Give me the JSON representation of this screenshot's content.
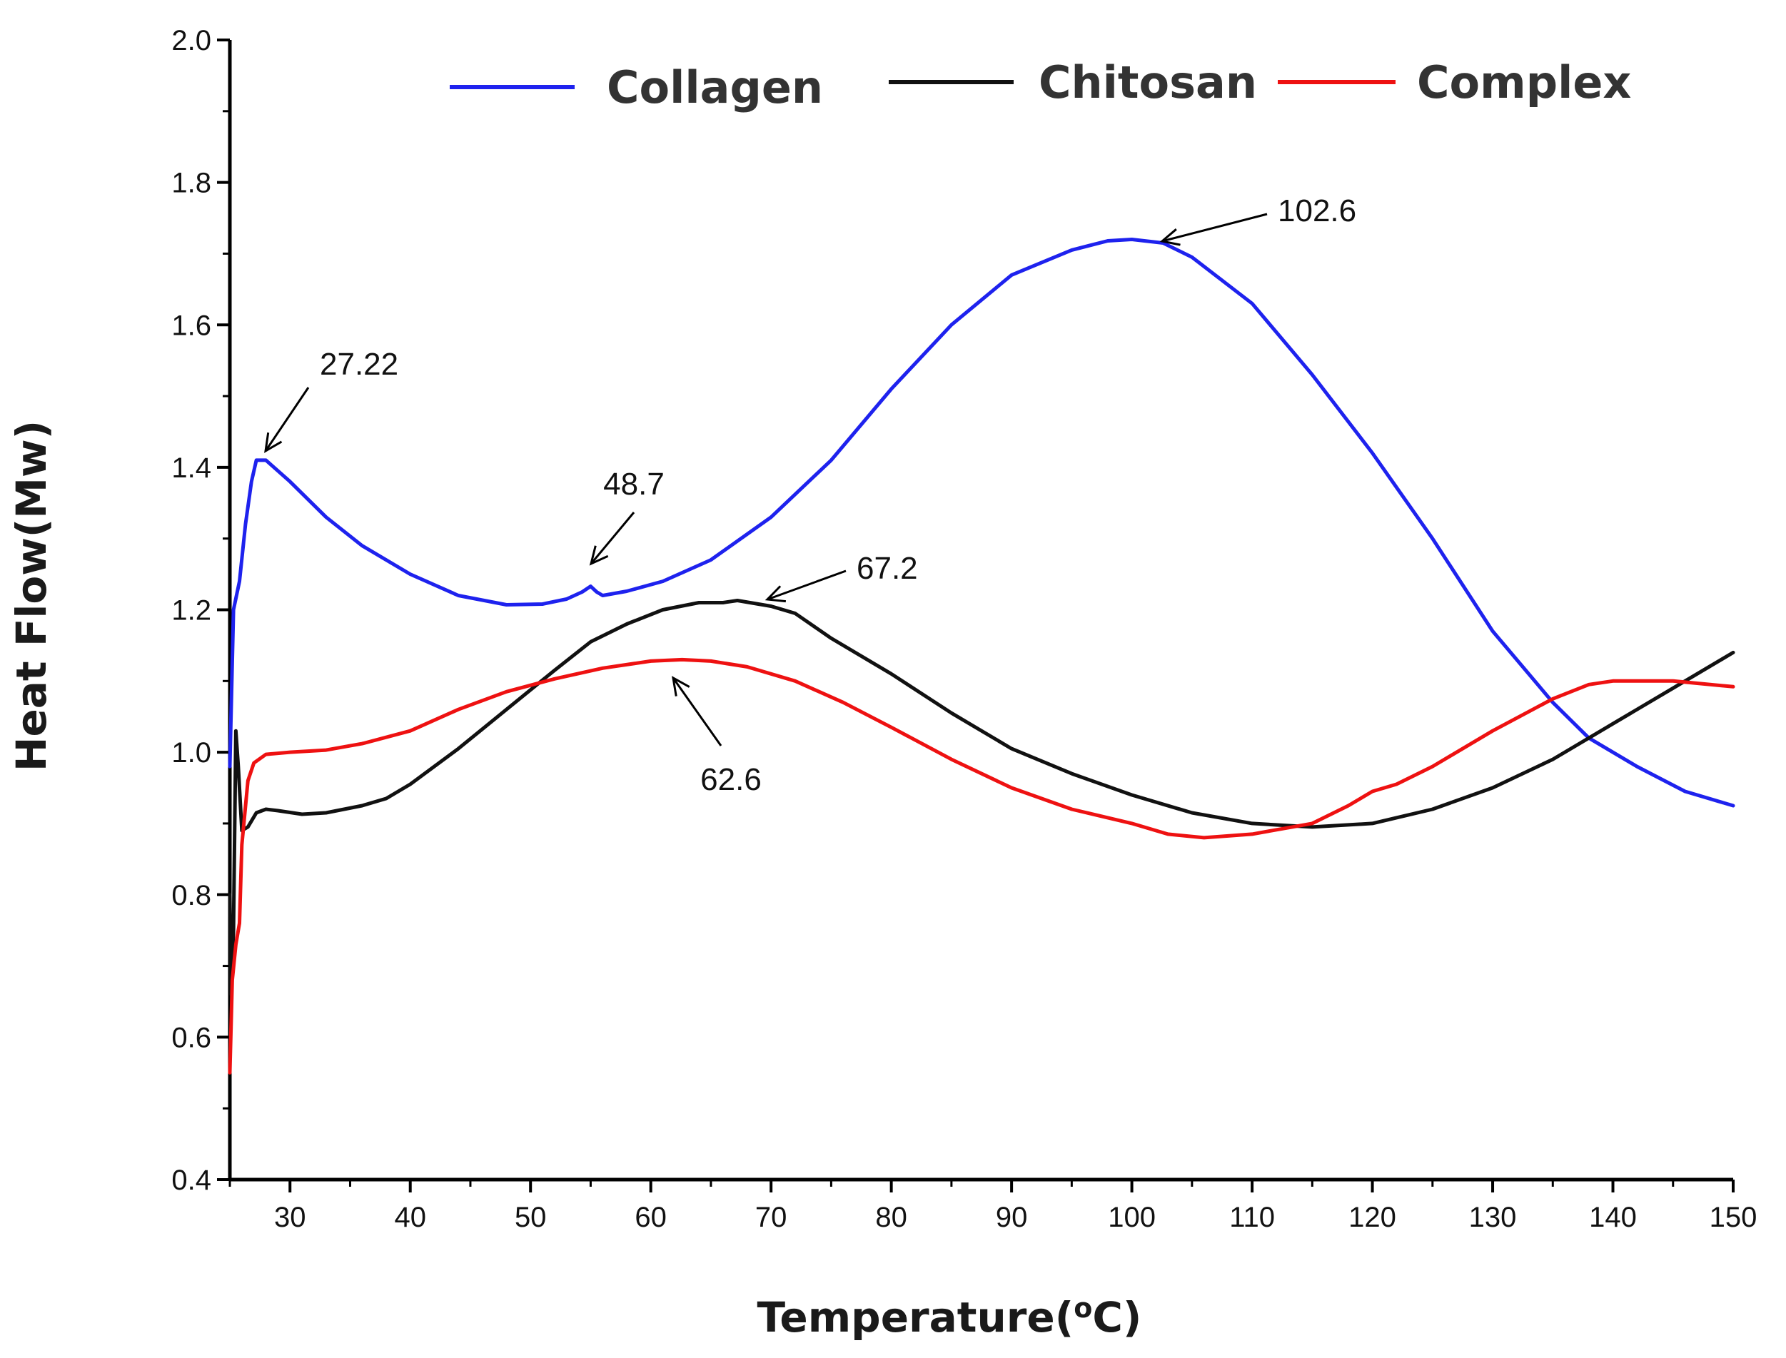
{
  "chart_data": {
    "type": "line",
    "title": "",
    "xlabel": "Temperature(",
    "xlabel_sup": "o",
    "xlabel_tail": "C)",
    "ylabel": "Heat Flow(Mw)",
    "xlim": [
      25,
      150
    ],
    "ylim": [
      0.4,
      2.0
    ],
    "x_ticks": [
      30,
      40,
      50,
      60,
      70,
      80,
      90,
      100,
      110,
      120,
      130,
      140,
      150
    ],
    "y_ticks": [
      0.4,
      0.6,
      0.8,
      1.0,
      1.2,
      1.4,
      1.6,
      1.8,
      2.0
    ],
    "legend_position": "top",
    "series": [
      {
        "name": "Collagen",
        "color": "#1e22ee",
        "points": [
          [
            25,
            0.98
          ],
          [
            25.3,
            1.2
          ],
          [
            25.8,
            1.24
          ],
          [
            26.3,
            1.32
          ],
          [
            26.8,
            1.38
          ],
          [
            27.2,
            1.41
          ],
          [
            28,
            1.41
          ],
          [
            30,
            1.38
          ],
          [
            33,
            1.33
          ],
          [
            36,
            1.29
          ],
          [
            40,
            1.25
          ],
          [
            44,
            1.22
          ],
          [
            48,
            1.207
          ],
          [
            51,
            1.208
          ],
          [
            53,
            1.215
          ],
          [
            54.3,
            1.225
          ],
          [
            55,
            1.233
          ],
          [
            55.5,
            1.225
          ],
          [
            56,
            1.22
          ],
          [
            58,
            1.226
          ],
          [
            61,
            1.24
          ],
          [
            65,
            1.27
          ],
          [
            70,
            1.33
          ],
          [
            75,
            1.41
          ],
          [
            80,
            1.51
          ],
          [
            85,
            1.6
          ],
          [
            90,
            1.67
          ],
          [
            95,
            1.705
          ],
          [
            98,
            1.718
          ],
          [
            100,
            1.72
          ],
          [
            102.6,
            1.715
          ],
          [
            105,
            1.695
          ],
          [
            110,
            1.63
          ],
          [
            115,
            1.53
          ],
          [
            120,
            1.42
          ],
          [
            125,
            1.3
          ],
          [
            130,
            1.17
          ],
          [
            135,
            1.07
          ],
          [
            138,
            1.02
          ],
          [
            142,
            0.98
          ],
          [
            146,
            0.945
          ],
          [
            150,
            0.925
          ]
        ]
      },
      {
        "name": "Chitosan",
        "color": "#111111",
        "points": [
          [
            25,
            0.8
          ],
          [
            25.1,
            0.66
          ],
          [
            25.3,
            0.75
          ],
          [
            25.5,
            1.03
          ],
          [
            25.7,
            0.98
          ],
          [
            26,
            0.89
          ],
          [
            26.5,
            0.895
          ],
          [
            27.2,
            0.915
          ],
          [
            28,
            0.92
          ],
          [
            29,
            0.918
          ],
          [
            31,
            0.913
          ],
          [
            33,
            0.915
          ],
          [
            36,
            0.925
          ],
          [
            38,
            0.935
          ],
          [
            40,
            0.955
          ],
          [
            44,
            1.005
          ],
          [
            48,
            1.06
          ],
          [
            52,
            1.115
          ],
          [
            55,
            1.155
          ],
          [
            58,
            1.18
          ],
          [
            61,
            1.2
          ],
          [
            64,
            1.21
          ],
          [
            66,
            1.21
          ],
          [
            67.2,
            1.213
          ],
          [
            70,
            1.205
          ],
          [
            72,
            1.195
          ],
          [
            75,
            1.16
          ],
          [
            80,
            1.11
          ],
          [
            85,
            1.055
          ],
          [
            90,
            1.005
          ],
          [
            95,
            0.97
          ],
          [
            100,
            0.94
          ],
          [
            105,
            0.915
          ],
          [
            110,
            0.9
          ],
          [
            115,
            0.895
          ],
          [
            120,
            0.9
          ],
          [
            125,
            0.92
          ],
          [
            130,
            0.95
          ],
          [
            135,
            0.99
          ],
          [
            140,
            1.04
          ],
          [
            145,
            1.09
          ],
          [
            150,
            1.14
          ]
        ]
      },
      {
        "name": "Complex",
        "color": "#ee1111",
        "points": [
          [
            25,
            0.55
          ],
          [
            25.2,
            0.68
          ],
          [
            25.5,
            0.73
          ],
          [
            25.8,
            0.76
          ],
          [
            26,
            0.87
          ],
          [
            26.5,
            0.96
          ],
          [
            27,
            0.985
          ],
          [
            28,
            0.997
          ],
          [
            30,
            1.0
          ],
          [
            33,
            1.003
          ],
          [
            36,
            1.012
          ],
          [
            40,
            1.03
          ],
          [
            44,
            1.06
          ],
          [
            48,
            1.085
          ],
          [
            52,
            1.103
          ],
          [
            56,
            1.118
          ],
          [
            60,
            1.128
          ],
          [
            62.6,
            1.13
          ],
          [
            65,
            1.128
          ],
          [
            68,
            1.12
          ],
          [
            72,
            1.1
          ],
          [
            76,
            1.07
          ],
          [
            80,
            1.035
          ],
          [
            85,
            0.99
          ],
          [
            90,
            0.95
          ],
          [
            95,
            0.92
          ],
          [
            100,
            0.9
          ],
          [
            103,
            0.885
          ],
          [
            106,
            0.88
          ],
          [
            110,
            0.885
          ],
          [
            115,
            0.9
          ],
          [
            118,
            0.925
          ],
          [
            120,
            0.945
          ],
          [
            122,
            0.955
          ],
          [
            125,
            0.98
          ],
          [
            130,
            1.03
          ],
          [
            135,
            1.075
          ],
          [
            138,
            1.095
          ],
          [
            140,
            1.1
          ],
          [
            145,
            1.1
          ],
          [
            150,
            1.092
          ]
        ]
      }
    ],
    "annotations": [
      {
        "text": "27.22",
        "x": 27.22,
        "y": 1.41
      },
      {
        "text": "48.7",
        "x": 55.0,
        "y": 1.233
      },
      {
        "text": "67.2",
        "x": 67.2,
        "y": 1.213
      },
      {
        "text": "62.6",
        "x": 62.6,
        "y": 1.13
      },
      {
        "text": "102.6",
        "x": 102.6,
        "y": 1.72
      }
    ]
  }
}
